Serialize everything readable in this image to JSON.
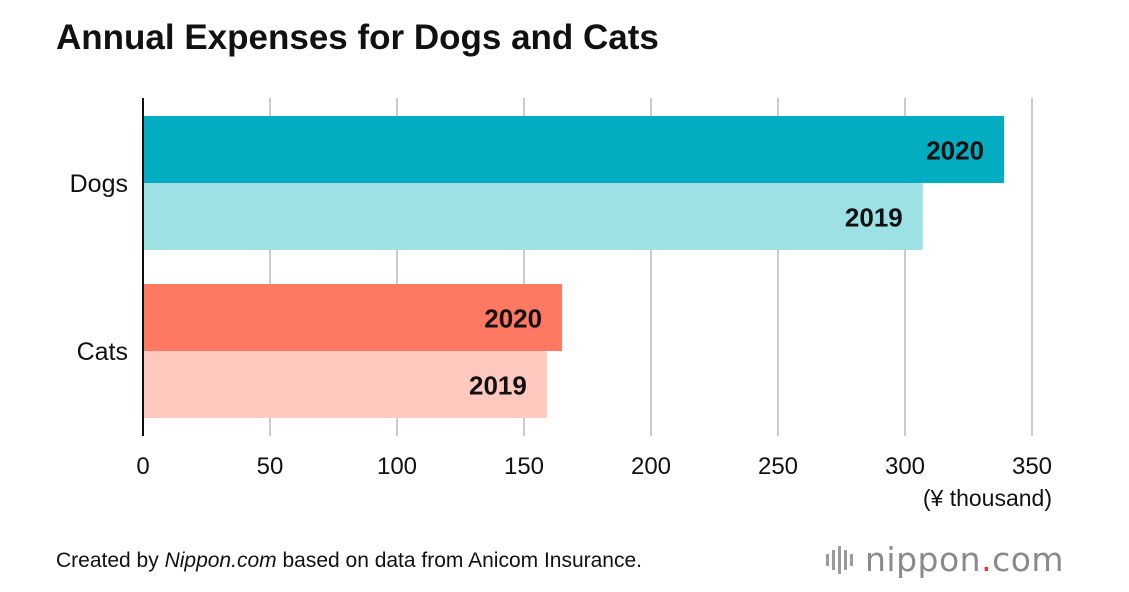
{
  "chart_data": {
    "type": "bar",
    "orientation": "horizontal",
    "title": "Annual Expenses for Dogs and Cats",
    "unit_label": "(¥ thousand)",
    "xlim": [
      0,
      350
    ],
    "xticks": [
      0,
      50,
      100,
      150,
      200,
      250,
      300,
      350
    ],
    "grid": true,
    "categories": [
      "Dogs",
      "Cats"
    ],
    "series": [
      {
        "name": "2020",
        "values": [
          339,
          165
        ],
        "colors": [
          "#03adc1",
          "#ff7962"
        ]
      },
      {
        "name": "2019",
        "values": [
          307,
          159
        ],
        "colors": [
          "#9ee1e5",
          "#ffc9bf"
        ]
      }
    ]
  },
  "footer": {
    "prefix": "Created by ",
    "source_name": "Nippon.com",
    "suffix": " based on data from Anicom Insurance."
  },
  "logo": {
    "text_main": "nippon",
    "text_dot": ".",
    "text_tld": "com"
  },
  "colors": {
    "grid": "#cccccc",
    "axis": "#111111",
    "text": "#111111"
  }
}
